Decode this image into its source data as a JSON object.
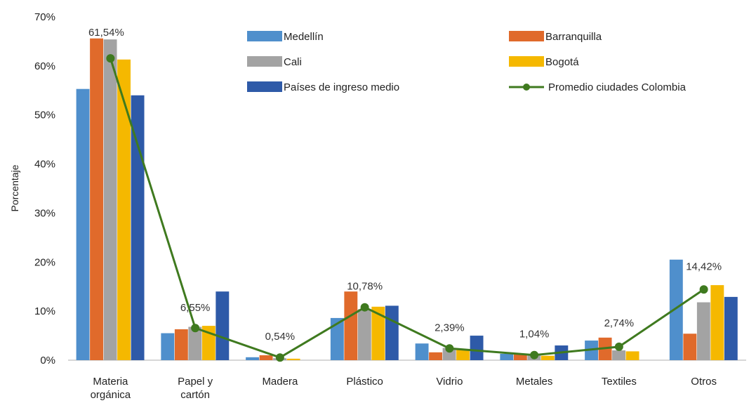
{
  "chart_data": {
    "type": "bar",
    "ylabel": "Porcentaje",
    "xlabel": "",
    "title": "",
    "ylim": [
      0,
      70
    ],
    "yticks": [
      "0%",
      "10%",
      "20%",
      "30%",
      "40%",
      "50%",
      "60%",
      "70%"
    ],
    "grid": false,
    "legend_position": "top-right",
    "categories": [
      [
        "Materia",
        "orgánica"
      ],
      [
        "Papel y",
        "cartón"
      ],
      [
        "Madera"
      ],
      [
        "Plástico"
      ],
      [
        "Vidrio"
      ],
      [
        "Metales"
      ],
      [
        "Textiles"
      ],
      [
        "Otros"
      ]
    ],
    "series": [
      {
        "name": "Medellín",
        "color": "#4f8fcc",
        "values": [
          55.3,
          5.5,
          0.6,
          8.6,
          3.4,
          1.3,
          4.0,
          20.5
        ]
      },
      {
        "name": "Barranquilla",
        "color": "#e06a2b",
        "values": [
          65.6,
          6.3,
          1.0,
          14.0,
          1.6,
          1.2,
          4.6,
          5.4
        ]
      },
      {
        "name": "Cali",
        "color": "#a3a3a3",
        "values": [
          65.4,
          6.8,
          0.4,
          10.4,
          2.5,
          1.1,
          2.0,
          11.8
        ]
      },
      {
        "name": "Bogotá",
        "color": "#f5b800",
        "values": [
          61.3,
          7.0,
          0.3,
          10.9,
          2.2,
          0.9,
          1.8,
          15.3
        ]
      },
      {
        "name": "Países de ingreso medio",
        "color": "#2e5aa8",
        "values": [
          54.0,
          14.0,
          0.0,
          11.1,
          5.0,
          3.0,
          0.0,
          12.9
        ]
      }
    ],
    "line": {
      "name": "Promedio ciudades Colombia",
      "color": "#3f7a1f",
      "values": [
        61.54,
        6.55,
        0.54,
        10.78,
        2.39,
        1.04,
        2.74,
        14.42
      ],
      "labels": [
        "61,54%",
        "6,55%",
        "0,54%",
        "10,78%",
        "2,39%",
        "1,04%",
        "2,74%",
        "14,42%"
      ]
    }
  }
}
